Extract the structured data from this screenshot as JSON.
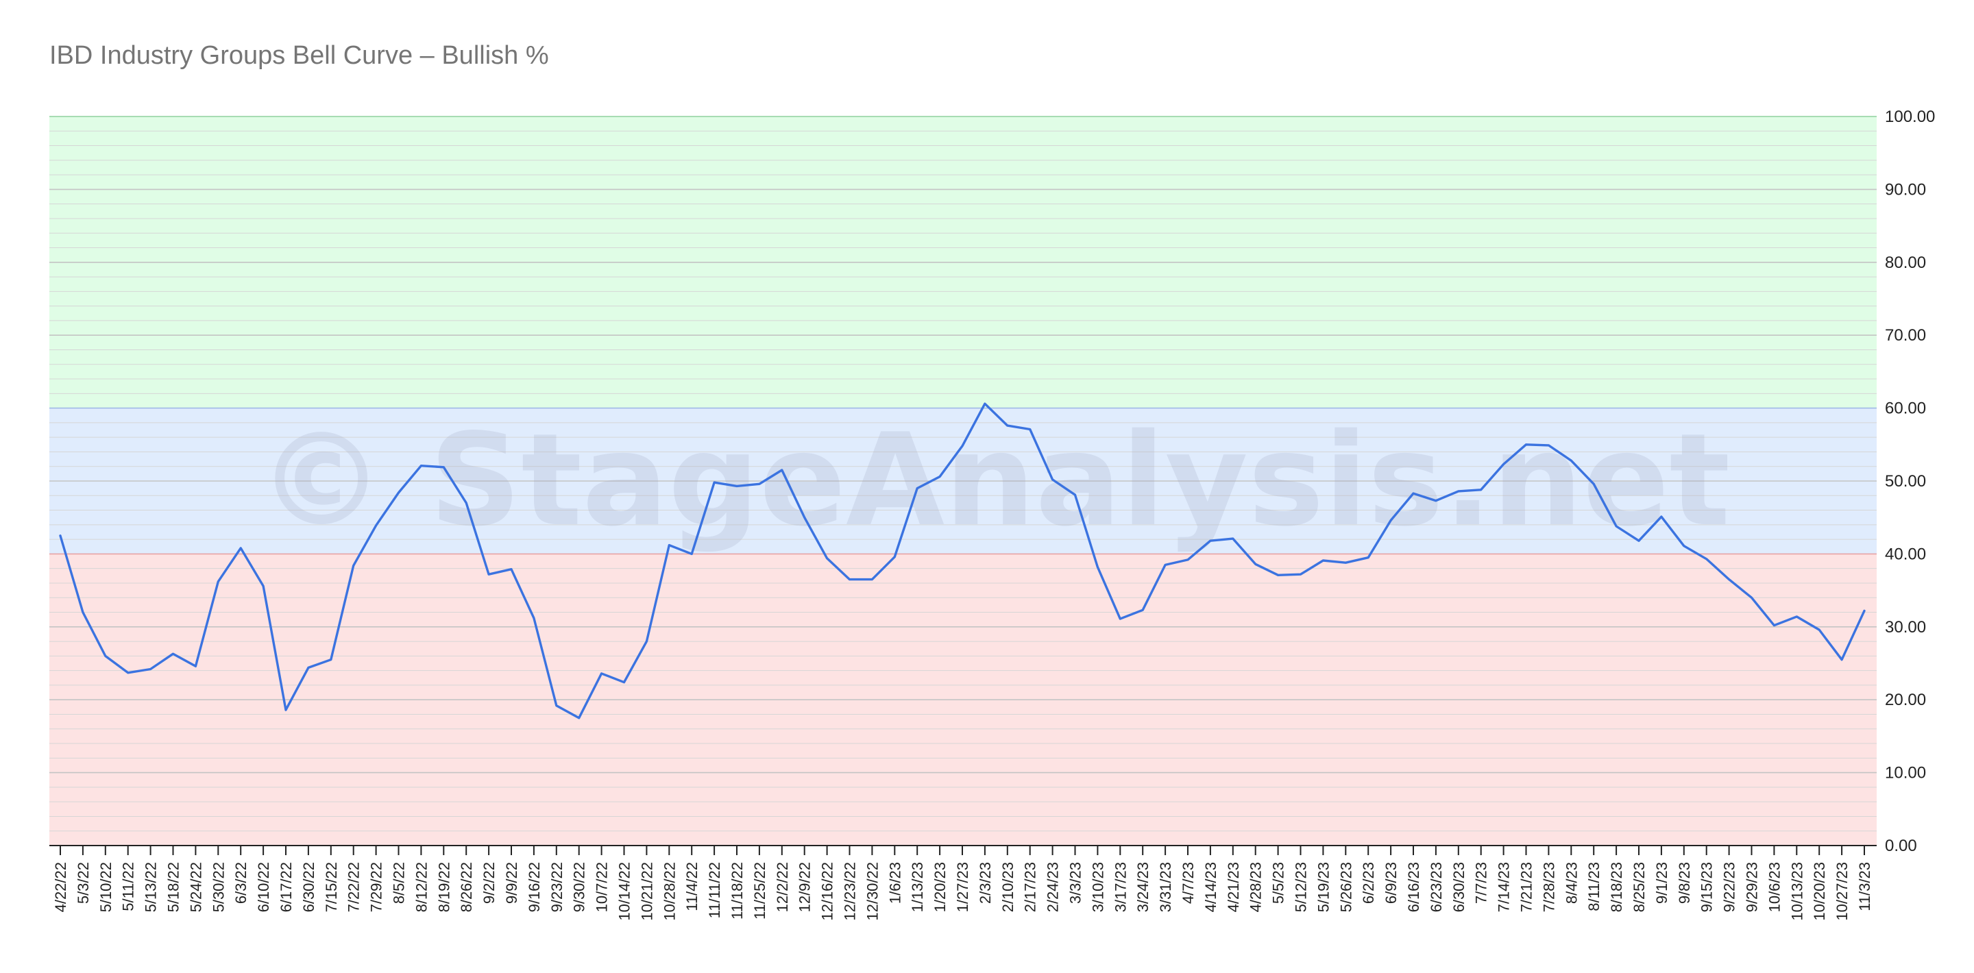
{
  "chart_data": {
    "type": "line",
    "title": "IBD Industry Groups Bell Curve – Bullish %",
    "watermark": "© StageAnalysis.net",
    "xlabel": "",
    "ylabel": "",
    "ylim": [
      0,
      100
    ],
    "y_ticks": [
      "0.00",
      "10.00",
      "20.00",
      "30.00",
      "40.00",
      "50.00",
      "60.00",
      "70.00",
      "80.00",
      "90.00",
      "100.00"
    ],
    "y_axis_side": "right",
    "grid": true,
    "legend": "none",
    "bands": [
      {
        "from": 0,
        "to": 40,
        "color": "#fde3e3"
      },
      {
        "from": 40,
        "to": 60,
        "color": "#e0ecfd"
      },
      {
        "from": 60,
        "to": 100,
        "color": "#e0fde6"
      }
    ],
    "line_color": "#3b73e0",
    "categories": [
      "4/22/22",
      "5/3/22",
      "5/10/22",
      "5/11/22",
      "5/13/22",
      "5/18/22",
      "5/24/22",
      "5/30/22",
      "6/3/22",
      "6/10/22",
      "6/17/22",
      "6/30/22",
      "7/15/22",
      "7/22/22",
      "7/29/22",
      "8/5/22",
      "8/12/22",
      "8/19/22",
      "8/26/22",
      "9/2/22",
      "9/9/22",
      "9/16/22",
      "9/23/22",
      "9/30/22",
      "10/7/22",
      "10/14/22",
      "10/21/22",
      "10/28/22",
      "11/4/22",
      "11/11/22",
      "11/18/22",
      "11/25/22",
      "12/2/22",
      "12/9/22",
      "12/16/22",
      "12/23/22",
      "12/30/22",
      "1/6/23",
      "1/13/23",
      "1/20/23",
      "1/27/23",
      "2/3/23",
      "2/10/23",
      "2/17/23",
      "2/24/23",
      "3/3/23",
      "3/10/23",
      "3/17/23",
      "3/24/23",
      "3/31/23",
      "4/7/23",
      "4/14/23",
      "4/21/23",
      "4/28/23",
      "5/5/23",
      "5/12/23",
      "5/19/23",
      "5/26/23",
      "6/2/23",
      "6/9/23",
      "6/16/23",
      "6/23/23",
      "6/30/23",
      "7/7/23",
      "7/14/23",
      "7/21/23",
      "7/28/23",
      "8/4/23",
      "8/11/23",
      "8/18/23",
      "8/25/23",
      "9/1/23",
      "9/8/23",
      "9/15/23",
      "9/22/23",
      "9/29/23",
      "10/6/23",
      "10/13/23",
      "10/20/23",
      "10/27/23",
      "11/3/23"
    ],
    "series": [
      {
        "values": [
          42.5,
          32,
          26,
          23.7,
          24.2,
          26.3,
          24.6,
          36.2,
          40.8,
          35.6,
          18.6,
          24.4,
          25.5,
          38.4,
          43.9,
          48.4,
          52.1,
          51.9,
          47,
          37.2,
          37.9,
          31.2,
          19.2,
          17.5,
          23.6,
          22.4,
          28,
          41.2,
          40,
          49.8,
          49.3,
          49.6,
          51.5,
          45,
          39.4,
          36.5,
          36.5,
          39.6,
          49,
          50.6,
          54.8,
          60.6,
          57.6,
          57.1,
          50.2,
          48.1,
          38.2,
          31.1,
          32.3,
          38.5,
          39.2,
          41.8,
          42.1,
          38.6,
          37.1,
          37.2,
          39.1,
          38.8,
          39.5,
          44.6,
          48.3,
          47.3,
          48.6,
          48.8,
          52.3,
          55,
          54.9,
          52.8,
          49.6,
          43.8,
          41.8,
          45.1,
          41.1,
          39.3,
          36.5,
          34,
          30.2,
          31.4,
          29.6,
          25.5,
          32.2
        ]
      }
    ]
  }
}
